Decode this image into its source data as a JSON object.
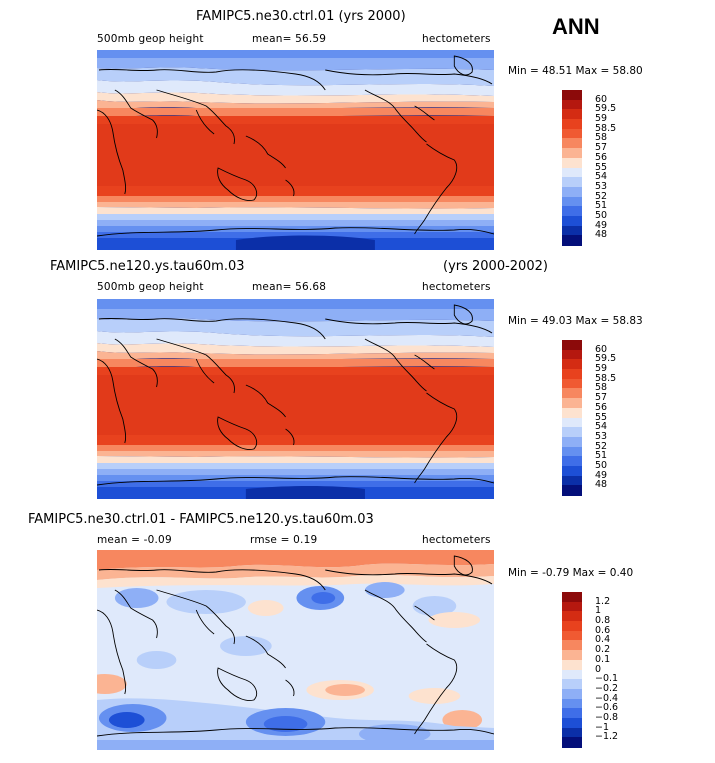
{
  "season": "ANN",
  "panels": [
    {
      "title": "FAMIPC5.ne30.ctrl.01 (yrs 2000)",
      "title_right": "",
      "left_label": "500mb geop height",
      "mid_label": "mean=  56.59",
      "right_label": "hectometers",
      "minmax": "Min =  48.51  Max =  58.80",
      "colorbar_labels": [
        "60",
        "59.5",
        "59",
        "58.5",
        "58",
        "57",
        "56",
        "55",
        "54",
        "53",
        "52",
        "51",
        "50",
        "49",
        "48"
      ],
      "colorbar_colors": [
        "#8c0a0a",
        "#b5180f",
        "#d42c13",
        "#e8421e",
        "#f05a32",
        "#f7875f",
        "#fbb493",
        "#fde2cf",
        "#dfe9fb",
        "#b8cffa",
        "#8eaff6",
        "#6590f0",
        "#3f6ee8",
        "#1d4fd6",
        "#0b2fa8",
        "#040f7a"
      ],
      "minmax_text": ""
    },
    {
      "title": "FAMIPC5.ne120.ys.tau60m.03",
      "title_right": "(yrs 2000-2002)",
      "left_label": "500mb geop height",
      "mid_label": "mean=  56.68",
      "right_label": "hectometers",
      "minmax": "Min =  49.03  Max =  58.83",
      "colorbar_labels": [
        "60",
        "59.5",
        "59",
        "58.5",
        "58",
        "57",
        "56",
        "55",
        "54",
        "53",
        "52",
        "51",
        "50",
        "49",
        "48"
      ],
      "colorbar_colors": [
        "#8c0a0a",
        "#b5180f",
        "#d42c13",
        "#e8421e",
        "#f05a32",
        "#f7875f",
        "#fbb493",
        "#fde2cf",
        "#dfe9fb",
        "#b8cffa",
        "#8eaff6",
        "#6590f0",
        "#3f6ee8",
        "#1d4fd6",
        "#0b2fa8",
        "#040f7a"
      ]
    },
    {
      "title": "FAMIPC5.ne30.ctrl.01 - FAMIPC5.ne120.ys.tau60m.03",
      "title_right": "",
      "left_label": "mean =  -0.09",
      "mid_label": "rmse =   0.19",
      "right_label": "hectometers",
      "minmax": "Min =  -0.79  Max =   0.40",
      "colorbar_labels": [
        "1.2",
        "1",
        "0.8",
        "0.6",
        "0.4",
        "0.2",
        "0.1",
        "0",
        "−0.1",
        "−0.2",
        "−0.4",
        "−0.6",
        "−0.8",
        "−1",
        "−1.2"
      ],
      "colorbar_colors": [
        "#8c0a0a",
        "#b5180f",
        "#d42c13",
        "#e8421e",
        "#f05a32",
        "#f7875f",
        "#fbb493",
        "#fde2cf",
        "#dfe9fb",
        "#b8cffa",
        "#8eaff6",
        "#6590f0",
        "#3f6ee8",
        "#1d4fd6",
        "#0b2fa8",
        "#040f7a"
      ]
    }
  ]
}
